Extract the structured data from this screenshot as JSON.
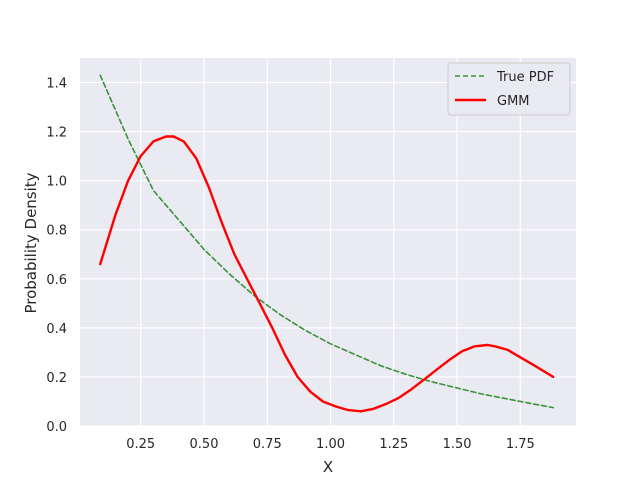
{
  "chart_data": {
    "type": "line",
    "xlabel": "X",
    "ylabel": "Probability Density",
    "xlim": [
      0.01,
      1.97
    ],
    "ylim": [
      0.0,
      1.5
    ],
    "xticks": [
      0.25,
      0.5,
      0.75,
      1.0,
      1.25,
      1.5,
      1.75
    ],
    "xtick_labels": [
      "0.25",
      "0.50",
      "0.75",
      "1.00",
      "1.25",
      "1.50",
      "1.75"
    ],
    "yticks": [
      0.0,
      0.2,
      0.4,
      0.6,
      0.8,
      1.0,
      1.2,
      1.4
    ],
    "ytick_labels": [
      "0.0",
      "0.2",
      "0.4",
      "0.6",
      "0.8",
      "1.0",
      "1.2",
      "1.4"
    ],
    "grid": true,
    "legend_position": "top-right",
    "series": [
      {
        "name": "True PDF",
        "color": "#3a923a",
        "style": "dashed",
        "x": [
          0.09,
          0.2,
          0.3,
          0.4,
          0.5,
          0.6,
          0.7,
          0.8,
          0.9,
          1.0,
          1.1,
          1.2,
          1.3,
          1.4,
          1.5,
          1.6,
          1.7,
          1.8,
          1.88
        ],
        "y": [
          1.43,
          1.17,
          0.96,
          0.84,
          0.72,
          0.62,
          0.53,
          0.455,
          0.39,
          0.335,
          0.29,
          0.245,
          0.21,
          0.18,
          0.155,
          0.13,
          0.11,
          0.09,
          0.075
        ]
      },
      {
        "name": "GMM",
        "color": "#ff0000",
        "style": "solid",
        "x": [
          0.09,
          0.15,
          0.2,
          0.25,
          0.3,
          0.35,
          0.38,
          0.42,
          0.47,
          0.52,
          0.57,
          0.62,
          0.67,
          0.72,
          0.77,
          0.82,
          0.87,
          0.92,
          0.97,
          1.02,
          1.07,
          1.12,
          1.17,
          1.22,
          1.27,
          1.32,
          1.37,
          1.42,
          1.47,
          1.52,
          1.57,
          1.62,
          1.65,
          1.7,
          1.75,
          1.8,
          1.88
        ],
        "y": [
          0.66,
          0.86,
          1.0,
          1.1,
          1.16,
          1.18,
          1.18,
          1.16,
          1.09,
          0.97,
          0.83,
          0.7,
          0.6,
          0.5,
          0.4,
          0.29,
          0.2,
          0.14,
          0.1,
          0.08,
          0.065,
          0.06,
          0.07,
          0.09,
          0.115,
          0.15,
          0.19,
          0.23,
          0.27,
          0.305,
          0.325,
          0.33,
          0.325,
          0.31,
          0.28,
          0.25,
          0.2
        ]
      }
    ]
  }
}
